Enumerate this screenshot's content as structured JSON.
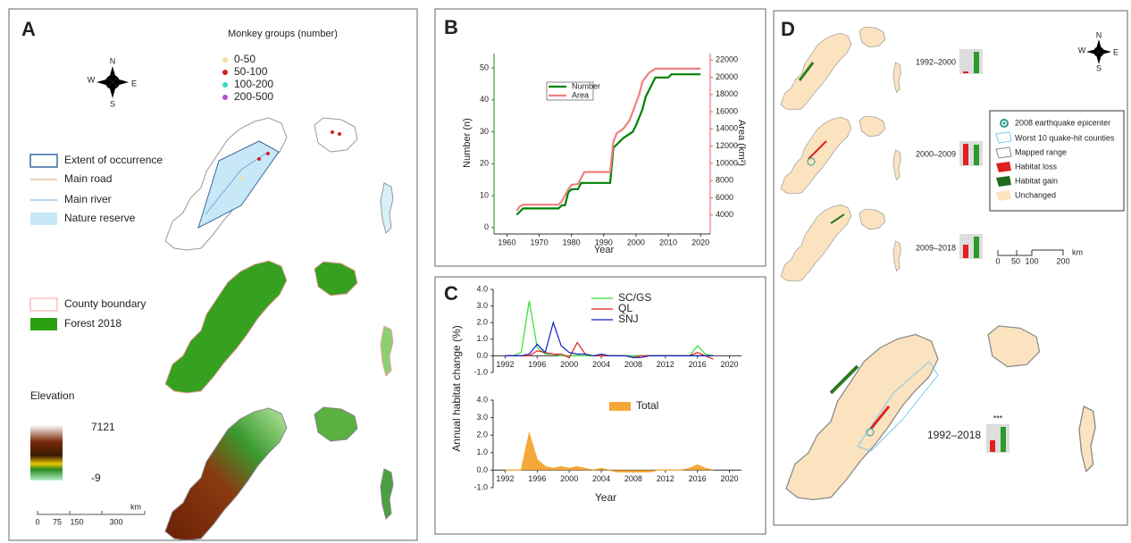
{
  "chart_data": [
    {
      "type": "line",
      "title": "B",
      "xlabel": "Year",
      "ylabel": "Number (n)",
      "y2label": "Area (km²)",
      "xlim": [
        1956,
        2023
      ],
      "xticks": [
        1960,
        1970,
        1980,
        1990,
        2000,
        2010,
        2020
      ],
      "ylim": [
        -2,
        54.5
      ],
      "yticks": [
        0,
        10,
        20,
        30,
        40,
        50
      ],
      "y2lim": [
        1800,
        22750
      ],
      "y2ticks": [
        4000,
        6000,
        8000,
        10000,
        12000,
        14000,
        16000,
        18000,
        20000,
        22000
      ],
      "legend": "upper left",
      "series": [
        {
          "name": "Number",
          "color": "#008000",
          "x": [
            1963,
            1964,
            1965,
            1976,
            1977,
            1978,
            1979,
            1980,
            1982,
            1983,
            1992,
            1993,
            1994,
            1996,
            1999,
            2000,
            2002,
            2003,
            2005,
            2006,
            2010,
            2011,
            2020
          ],
          "values": [
            4,
            5,
            6,
            6,
            7,
            7,
            11,
            12,
            12,
            14,
            14,
            25,
            26,
            28,
            30,
            32,
            37,
            41,
            45,
            47,
            47,
            48,
            48
          ]
        },
        {
          "name": "Area",
          "color": "#f08080",
          "axis": "y2",
          "x": [
            1963,
            1964,
            1965,
            1976,
            1977,
            1979,
            1980,
            1982,
            1984,
            1992,
            1993,
            1994,
            1996,
            1998,
            1999,
            2001,
            2002,
            2004,
            2006,
            2020
          ],
          "values": [
            4500,
            5000,
            5200,
            5200,
            5600,
            7000,
            7500,
            7600,
            9000,
            9000,
            12500,
            13500,
            14000,
            15000,
            16000,
            18000,
            19500,
            20500,
            21000,
            21000
          ]
        }
      ]
    },
    {
      "type": "line",
      "title": "C",
      "ylabel": "Annual habitat change (%)",
      "x": [
        1992,
        1993,
        1994,
        1995,
        1996,
        1997,
        1998,
        1999,
        2000,
        2001,
        2002,
        2003,
        2004,
        2005,
        2006,
        2007,
        2008,
        2009,
        2010,
        2011,
        2012,
        2013,
        2014,
        2015,
        2016,
        2017,
        2018
      ],
      "xlim": [
        1990.5,
        2021.5
      ],
      "xticks": [
        1992,
        1996,
        2000,
        2004,
        2008,
        2012,
        2016,
        2020
      ],
      "ylim": [
        -1,
        4
      ],
      "yticks": [
        {
          "value": 4,
          "label": "4.0"
        },
        {
          "value": 3,
          "label": "3.0"
        },
        {
          "value": 2,
          "label": "2.0"
        },
        {
          "value": 1,
          "label": "1.0"
        },
        {
          "value": 0,
          "label": "0.0"
        },
        {
          "value": -1,
          "label": "-1.0"
        }
      ],
      "legend": "upper right",
      "series": [
        {
          "name": "SC/GS",
          "color": "#33dd33",
          "values": [
            0,
            0,
            0.2,
            3.3,
            0.5,
            0.1,
            0.1,
            0,
            0,
            0,
            0,
            0,
            0,
            0,
            0,
            0,
            0,
            0,
            0,
            0,
            0,
            0,
            0,
            0,
            0.6,
            0.1,
            0
          ]
        },
        {
          "name": "QL",
          "color": "#e02020",
          "values": [
            0,
            0,
            0,
            0,
            0.3,
            0.2,
            0.1,
            0.1,
            -0.1,
            0.8,
            0.1,
            0,
            0,
            0,
            0,
            0,
            -0.1,
            0,
            0,
            0,
            0,
            0,
            0,
            0,
            0.2,
            0,
            -0.2
          ]
        },
        {
          "name": "SNJ",
          "color": "#1020c0",
          "values": [
            0,
            0,
            0,
            0.1,
            0.7,
            0.2,
            2.0,
            0.6,
            0.2,
            0.1,
            0.1,
            0,
            0.1,
            0,
            0,
            0,
            -0.1,
            -0.1,
            0,
            0,
            0,
            0,
            0,
            0,
            0,
            0,
            0
          ]
        }
      ]
    },
    {
      "type": "area",
      "xlabel": "Year",
      "x": [
        1992,
        1993,
        1994,
        1995,
        1996,
        1997,
        1998,
        1999,
        2000,
        2001,
        2002,
        2003,
        2004,
        2005,
        2006,
        2007,
        2008,
        2009,
        2010,
        2011,
        2012,
        2013,
        2014,
        2015,
        2016,
        2017,
        2018
      ],
      "xlim": [
        1990.5,
        2021.5
      ],
      "xticks": [
        1992,
        1996,
        2000,
        2004,
        2008,
        2012,
        2016,
        2020
      ],
      "ylim": [
        -1,
        4
      ],
      "yticks": [
        {
          "value": 4,
          "label": "4.0"
        },
        {
          "value": 3,
          "label": "3.0"
        },
        {
          "value": 2,
          "label": "2.0"
        },
        {
          "value": 1,
          "label": "1.0"
        },
        {
          "value": 0,
          "label": "0.0"
        },
        {
          "value": -1,
          "label": "-1.0"
        }
      ],
      "legend": "upper center",
      "series": [
        {
          "name": "Total",
          "color": "#f5a83a",
          "values": [
            0,
            0,
            0,
            2.1,
            0.6,
            0.2,
            0.1,
            0.2,
            0.1,
            0.2,
            0.1,
            0,
            0.1,
            0,
            -0.1,
            -0.1,
            -0.1,
            -0.1,
            -0.1,
            0,
            0,
            0,
            0,
            0.1,
            0.3,
            0.1,
            0
          ]
        }
      ]
    }
  ],
  "map_a": {
    "label": "A",
    "legend_title": "Monkey groups (number)",
    "groups": [
      "0-50",
      "50-100",
      "100-200",
      "200-500"
    ],
    "compass": {
      "n": "N",
      "s": "S",
      "e": "E",
      "w": "W"
    },
    "layers": [
      "Extent of occurrence",
      "Main road",
      "Main river",
      "Nature reserve",
      "County boundary",
      "Forest 2018"
    ],
    "elevation": {
      "title": "Elevation",
      "max": 7121,
      "min": -9
    },
    "scale": {
      "unit": "km",
      "ticks": [
        0,
        75,
        150,
        300
      ]
    }
  },
  "map_d": {
    "label": "D",
    "periods": [
      "1992–2000",
      "2000–2009",
      "2009–2018",
      "1992–2018"
    ],
    "significance": "***",
    "legend": [
      "2008 earthquake epicenter",
      "Worst 10 quake-hit counties",
      "Mapped range",
      "Habitat loss",
      "Habitat gain",
      "Unchanged"
    ],
    "compass": {
      "n": "N",
      "s": "S",
      "e": "E",
      "w": "W"
    },
    "scale": {
      "unit": "km",
      "ticks": [
        0,
        50,
        100,
        200
      ]
    }
  }
}
